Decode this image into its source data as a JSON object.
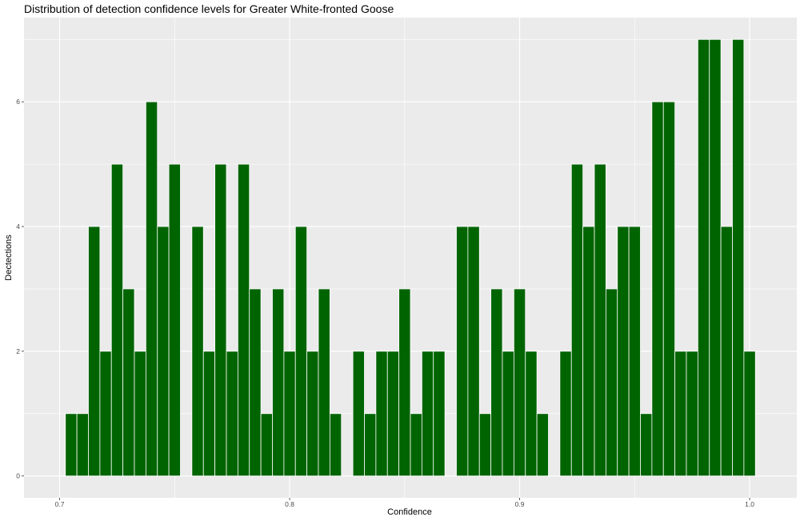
{
  "chart_data": {
    "type": "bar",
    "title": "Distribution of detection confidence levels for Greater White-fronted Goose",
    "xlabel": "Confidence",
    "ylabel": "Dectections",
    "xlim": [
      0.6845,
      1.0205
    ],
    "ylim": [
      -0.35,
      7.35
    ],
    "x_ticks": [
      0.7,
      0.8,
      0.9,
      1.0
    ],
    "x_tick_labels": [
      "0.7",
      "0.8",
      "0.9",
      "1.0"
    ],
    "y_ticks": [
      0,
      2,
      4,
      6
    ],
    "y_tick_labels": [
      "0",
      "2",
      "4",
      "6"
    ],
    "grid": true,
    "bin_width": 0.005,
    "bar_color": "#006400",
    "bar_edge_color": "#ffffff",
    "panel_background": "#ebebeb",
    "grid_color": "#ffffff",
    "series": [
      {
        "x": [
          0.705,
          0.71,
          0.715,
          0.72,
          0.725,
          0.73,
          0.735,
          0.74,
          0.745,
          0.75,
          0.755,
          0.76,
          0.765,
          0.77,
          0.775,
          0.78,
          0.785,
          0.79,
          0.795,
          0.8,
          0.805,
          0.81,
          0.815,
          0.82,
          0.825,
          0.83,
          0.835,
          0.84,
          0.845,
          0.85,
          0.855,
          0.86,
          0.865,
          0.87,
          0.875,
          0.88,
          0.885,
          0.89,
          0.895,
          0.9,
          0.905,
          0.91,
          0.915,
          0.92,
          0.925,
          0.93,
          0.935,
          0.94,
          0.945,
          0.95,
          0.955,
          0.96,
          0.965,
          0.97,
          0.975,
          0.98,
          0.985,
          0.99,
          0.995,
          1.0
        ],
        "values": [
          1,
          1,
          4,
          2,
          5,
          3,
          2,
          6,
          4,
          5,
          0,
          4,
          2,
          5,
          2,
          5,
          3,
          1,
          3,
          2,
          4,
          2,
          3,
          1,
          0,
          2,
          1,
          2,
          2,
          3,
          1,
          2,
          2,
          0,
          4,
          4,
          1,
          3,
          2,
          3,
          2,
          1,
          0,
          2,
          5,
          4,
          5,
          3,
          4,
          4,
          1,
          6,
          6,
          2,
          2,
          7,
          7,
          4,
          7,
          2
        ]
      }
    ]
  }
}
